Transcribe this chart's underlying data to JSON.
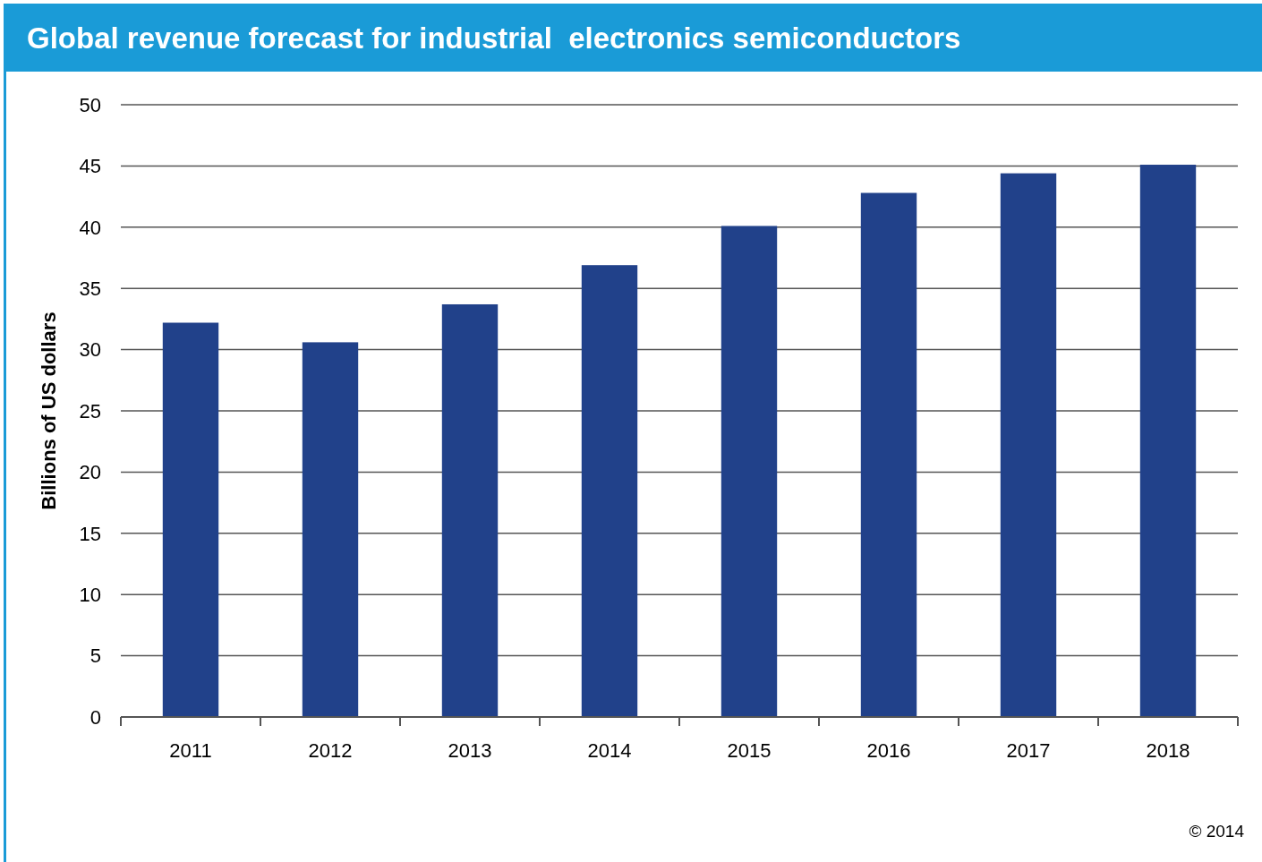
{
  "chart_data": {
    "type": "bar",
    "title": "Global revenue forecast for industrial  electronics semiconductors",
    "ylabel": "Billions of US dollars",
    "categories": [
      "2011",
      "2012",
      "2013",
      "2014",
      "2015",
      "2016",
      "2017",
      "2018"
    ],
    "values": [
      32.2,
      30.6,
      33.7,
      36.9,
      40.1,
      42.8,
      44.4,
      45.1
    ],
    "color": "#21418a",
    "ylim": [
      0,
      50
    ],
    "yticks": [
      0,
      5,
      10,
      15,
      20,
      25,
      30,
      35,
      40,
      45,
      50
    ],
    "grid": "y",
    "annotations": [
      "© 2014"
    ]
  }
}
